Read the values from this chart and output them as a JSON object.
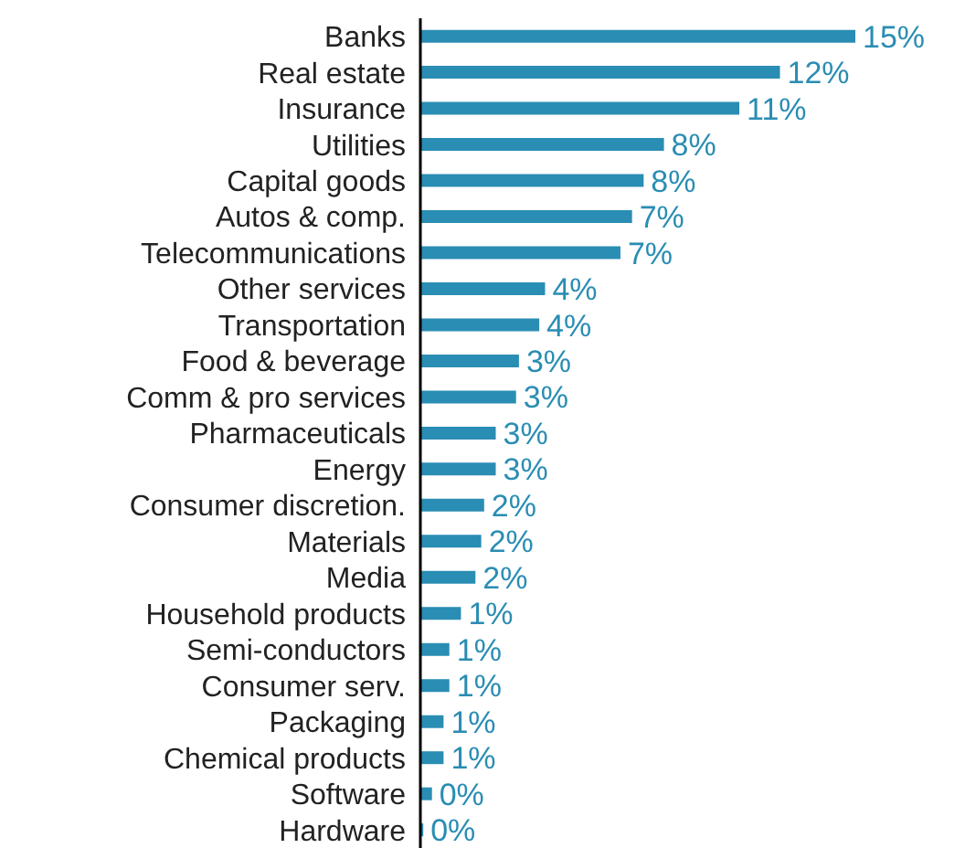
{
  "chart_data": {
    "type": "bar",
    "orientation": "horizontal",
    "categories": [
      "Banks",
      "Real estate",
      "Insurance",
      "Utilities",
      "Capital goods",
      "Autos & comp.",
      "Telecommunications",
      "Other services",
      "Transportation",
      "Food & beverage",
      "Comm & pro services",
      "Pharmaceuticals",
      "Energy",
      "Consumer discretion.",
      "Materials",
      "Media",
      "Household products",
      "Semi-conductors",
      "Consumer serv.",
      "Packaging",
      "Chemical products",
      "Software",
      "Hardware"
    ],
    "values": [
      15,
      12.4,
      11,
      8.4,
      7.7,
      7.3,
      6.9,
      4.3,
      4.1,
      3.4,
      3.3,
      2.6,
      2.6,
      2.2,
      2.1,
      1.9,
      1.4,
      1.0,
      1.0,
      0.8,
      0.8,
      0.4,
      0.1
    ],
    "value_labels": [
      "15%",
      "12%",
      "11%",
      "8%",
      "8%",
      "7%",
      "7%",
      "4%",
      "4%",
      "3%",
      "3%",
      "3%",
      "3%",
      "2%",
      "2%",
      "2%",
      "1%",
      "1%",
      "1%",
      "1%",
      "1%",
      "0%",
      "0%"
    ],
    "color": "#2a8db3"
  }
}
